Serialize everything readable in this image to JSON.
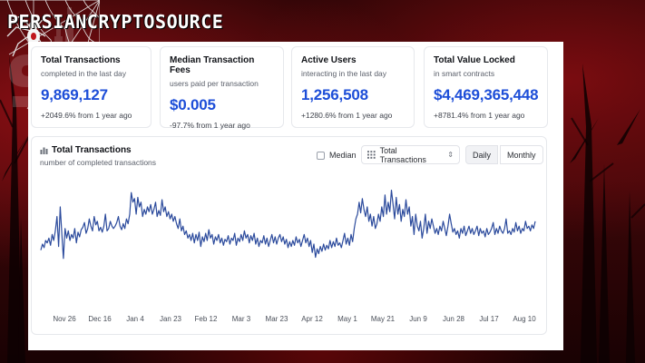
{
  "brand": {
    "text": "PERSIANCRYPTOSOURCE"
  },
  "cards": [
    {
      "title": "Total Transactions",
      "subtitle": "completed in the last day",
      "value": "9,869,127",
      "change": "+2049.6% from 1 year ago"
    },
    {
      "title": "Median Transaction Fees",
      "subtitle": "users paid per transaction",
      "value": "$0.005",
      "change": "-97.7% from 1 year ago"
    },
    {
      "title": "Active Users",
      "subtitle": "interacting in the last day",
      "value": "1,256,508",
      "change": "+1280.6% from 1 year ago"
    },
    {
      "title": "Total Value Locked",
      "subtitle": "in smart contracts",
      "value": "$4,469,365,448",
      "change": "+8781.4% from 1 year ago"
    }
  ],
  "chart_header": {
    "title": "Total Transactions",
    "subtitle": "number of completed transactions",
    "median_label": "Median",
    "select_value": "Total Transactions",
    "daily_label": "Daily",
    "monthly_label": "Monthly"
  },
  "icons": {
    "chart": "bar-chart-icon",
    "grid": "grid-icon",
    "chevron": "chevron-updown-icon",
    "web": "spider-web-icon",
    "spider": "spider-icon"
  },
  "colors": {
    "accent": "#1d4ed8",
    "line": "#2b4a9c",
    "background": "#3d0709"
  },
  "chart_data": {
    "type": "line",
    "title": "Total Transactions",
    "x_tick_labels": [
      "Nov 26",
      "Dec 16",
      "Jan 4",
      "Jan 23",
      "Feb 12",
      "Mar 3",
      "Mar 23",
      "Apr 12",
      "May 1",
      "May 21",
      "Jun 9",
      "Jun 28",
      "Jul 17",
      "Aug 10"
    ],
    "y_axis_visible": false,
    "grid": false,
    "series": [
      {
        "values": [
          0.42,
          0.47,
          0.44,
          0.5,
          0.48,
          0.52,
          0.46,
          0.55,
          0.5,
          0.58,
          0.7,
          0.45,
          0.78,
          0.55,
          0.35,
          0.6,
          0.52,
          0.58,
          0.5,
          0.55,
          0.52,
          0.6,
          0.48,
          0.57,
          0.53,
          0.59,
          0.61,
          0.65,
          0.56,
          0.6,
          0.68,
          0.62,
          0.58,
          0.7,
          0.63,
          0.66,
          0.58,
          0.61,
          0.57,
          0.62,
          0.72,
          0.58,
          0.6,
          0.66,
          0.62,
          0.6,
          0.62,
          0.65,
          0.7,
          0.62,
          0.59,
          0.64,
          0.6,
          0.68,
          0.64,
          0.72,
          0.9,
          0.82,
          0.85,
          0.72,
          0.86,
          0.78,
          0.82,
          0.7,
          0.76,
          0.72,
          0.78,
          0.74,
          0.8,
          0.72,
          0.76,
          0.82,
          0.7,
          0.75,
          0.71,
          0.84,
          0.74,
          0.78,
          0.7,
          0.74,
          0.68,
          0.72,
          0.66,
          0.7,
          0.64,
          0.6,
          0.68,
          0.58,
          0.62,
          0.55,
          0.58,
          0.52,
          0.55,
          0.5,
          0.56,
          0.48,
          0.55,
          0.5,
          0.57,
          0.45,
          0.53,
          0.49,
          0.56,
          0.5,
          0.59,
          0.52,
          0.55,
          0.47,
          0.53,
          0.5,
          0.55,
          0.48,
          0.52,
          0.46,
          0.51,
          0.49,
          0.54,
          0.47,
          0.52,
          0.5,
          0.56,
          0.46,
          0.52,
          0.49,
          0.55,
          0.5,
          0.58,
          0.52,
          0.55,
          0.48,
          0.54,
          0.5,
          0.56,
          0.47,
          0.52,
          0.45,
          0.5,
          0.48,
          0.54,
          0.47,
          0.52,
          0.45,
          0.5,
          0.55,
          0.48,
          0.53,
          0.47,
          0.52,
          0.55,
          0.49,
          0.53,
          0.47,
          0.51,
          0.44,
          0.49,
          0.45,
          0.5,
          0.46,
          0.53,
          0.48,
          0.51,
          0.45,
          0.5,
          0.55,
          0.48,
          0.52,
          0.45,
          0.5,
          0.4,
          0.47,
          0.36,
          0.43,
          0.39,
          0.45,
          0.41,
          0.47,
          0.42,
          0.46,
          0.43,
          0.5,
          0.44,
          0.49,
          0.45,
          0.52,
          0.46,
          0.48,
          0.44,
          0.5,
          0.56,
          0.47,
          0.52,
          0.46,
          0.55,
          0.49,
          0.6,
          0.68,
          0.72,
          0.82,
          0.73,
          0.85,
          0.76,
          0.7,
          0.78,
          0.66,
          0.72,
          0.62,
          0.7,
          0.6,
          0.64,
          0.72,
          0.66,
          0.78,
          0.7,
          0.88,
          0.72,
          0.82,
          0.74,
          0.92,
          0.8,
          0.68,
          0.86,
          0.72,
          0.8,
          0.66,
          0.76,
          0.7,
          0.84,
          0.72,
          0.78,
          0.62,
          0.7,
          0.55,
          0.72,
          0.62,
          0.58,
          0.66,
          0.52,
          0.6,
          0.72,
          0.56,
          0.66,
          0.6,
          0.68,
          0.62,
          0.56,
          0.6,
          0.55,
          0.62,
          0.58,
          0.66,
          0.6,
          0.54,
          0.62,
          0.72,
          0.64,
          0.57,
          0.6,
          0.55,
          0.58,
          0.52,
          0.6,
          0.56,
          0.62,
          0.54,
          0.58,
          0.62,
          0.56,
          0.6,
          0.55,
          0.58,
          0.62,
          0.54,
          0.6,
          0.56,
          0.58,
          0.53,
          0.6,
          0.55,
          0.57,
          0.6,
          0.65,
          0.55,
          0.6,
          0.56,
          0.62,
          0.58,
          0.56,
          0.6,
          0.68,
          0.56,
          0.58,
          0.55,
          0.6,
          0.57,
          0.65,
          0.58,
          0.62,
          0.56,
          0.6,
          0.58,
          0.66,
          0.6,
          0.62,
          0.58,
          0.63,
          0.6,
          0.66
        ]
      }
    ]
  }
}
